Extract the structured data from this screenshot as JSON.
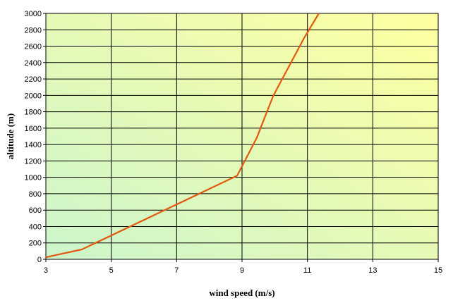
{
  "chart_data": {
    "type": "line",
    "title": "",
    "xlabel": "wind speed (m/s)",
    "ylabel": "altitude (m)",
    "xlim": [
      3,
      15
    ],
    "ylim": [
      0,
      3000
    ],
    "xticks": [
      3,
      5,
      7,
      9,
      11,
      13,
      15
    ],
    "yticks": [
      0,
      200,
      400,
      600,
      800,
      1000,
      1200,
      1400,
      1600,
      1800,
      2000,
      2200,
      2400,
      2600,
      2800,
      3000
    ],
    "xtick_labels": [
      "3",
      "5",
      "7",
      "9",
      "11",
      "13",
      "15"
    ],
    "ytick_labels": [
      "0",
      "200",
      "400",
      "600",
      "800",
      "1000",
      "1200",
      "1400",
      "1600",
      "1800",
      "2000",
      "2200",
      "2400",
      "2600",
      "2800",
      "3000"
    ],
    "grid": true,
    "series": [
      {
        "color": "#e05a10",
        "points": [
          {
            "x": 3.0,
            "y": 25
          },
          {
            "x": 4.1,
            "y": 120
          },
          {
            "x": 8.85,
            "y": 1020
          },
          {
            "x": 9.45,
            "y": 1480
          },
          {
            "x": 9.95,
            "y": 1990
          },
          {
            "x": 10.9,
            "y": 2700
          },
          {
            "x": 11.35,
            "y": 3000
          }
        ]
      }
    ],
    "background_gradient": [
      "#ccf5cc",
      "#ffffa0"
    ],
    "grid_color": "#000000",
    "plot_border_color": "#808080"
  }
}
